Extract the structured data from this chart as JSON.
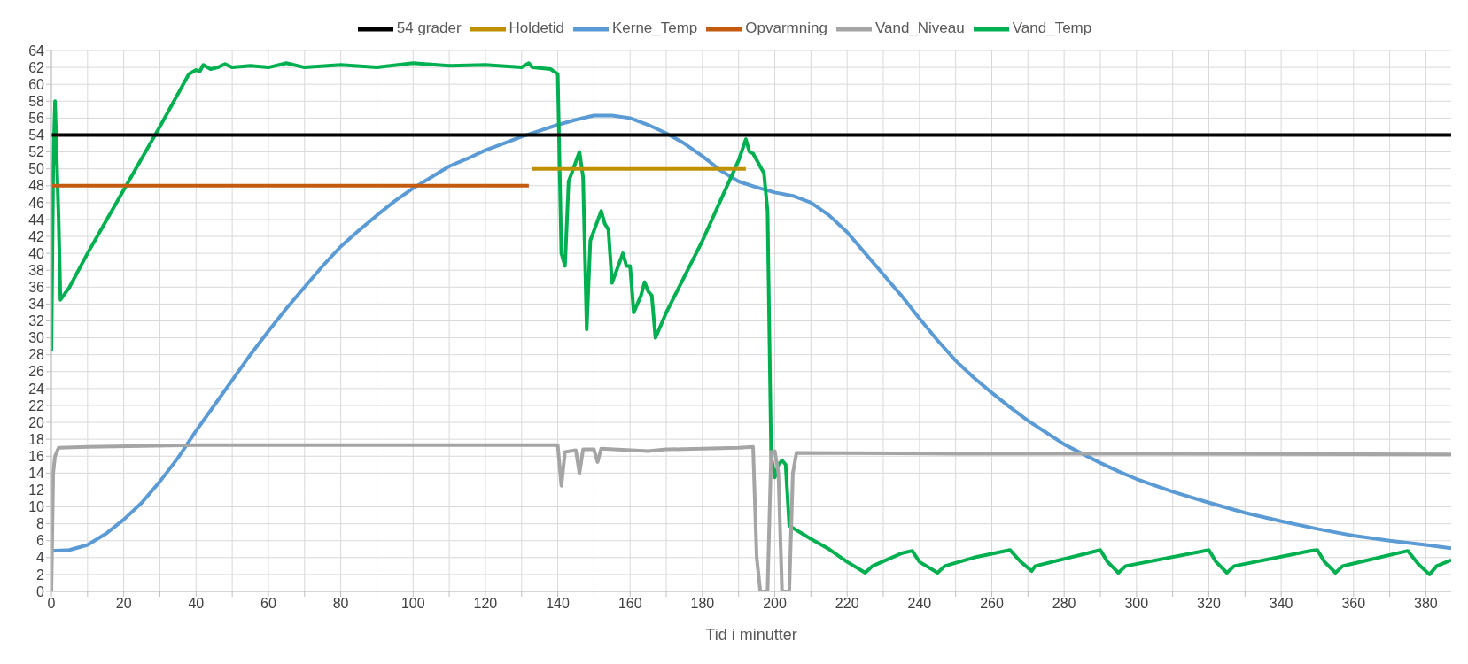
{
  "chart_data": {
    "type": "line",
    "xlabel": "Tid i minutter",
    "legend": "top",
    "grid": true,
    "marker": "none",
    "line_style": "solid",
    "xlim": [
      0,
      387
    ],
    "ylim": [
      0,
      64
    ],
    "xticks": [
      0,
      {
        "value": 10,
        "label": null
      },
      20,
      {
        "value": 30,
        "label": null
      },
      40,
      {
        "value": 50,
        "label": null
      },
      60,
      {
        "value": 70,
        "label": null
      },
      80,
      {
        "value": 90,
        "label": null
      },
      100,
      {
        "value": 110,
        "label": null
      },
      120,
      {
        "value": 130,
        "label": null
      },
      140,
      {
        "value": 150,
        "label": null
      },
      160,
      {
        "value": 170,
        "label": null
      },
      180,
      {
        "value": 190,
        "label": null
      },
      200,
      {
        "value": 210,
        "label": null
      },
      220,
      {
        "value": 230,
        "label": null
      },
      240,
      {
        "value": 250,
        "label": null
      },
      260,
      {
        "value": 270,
        "label": null
      },
      280,
      {
        "value": 290,
        "label": null
      },
      300,
      {
        "value": 310,
        "label": null
      },
      320,
      {
        "value": 330,
        "label": null
      },
      340,
      {
        "value": 350,
        "label": null
      },
      360,
      {
        "value": 370,
        "label": null
      },
      380
    ],
    "yticks": [
      0,
      2,
      4,
      6,
      8,
      10,
      12,
      14,
      16,
      18,
      20,
      22,
      24,
      26,
      28,
      30,
      32,
      34,
      36,
      38,
      40,
      42,
      44,
      46,
      48,
      50,
      52,
      54,
      56,
      58,
      60,
      62,
      64
    ],
    "series": [
      {
        "name": "Kerne_Temp",
        "color": "#5b9bd5",
        "x": [
          0,
          5,
          10,
          15,
          20,
          25,
          30,
          35,
          40,
          45,
          50,
          55,
          60,
          65,
          70,
          75,
          80,
          85,
          90,
          95,
          100,
          105,
          110,
          115,
          120,
          125,
          130,
          135,
          140,
          145,
          150,
          155,
          160,
          165,
          170,
          175,
          180,
          185,
          190,
          195,
          200,
          205,
          210,
          215,
          220,
          225,
          230,
          235,
          240,
          245,
          250,
          255,
          260,
          265,
          270,
          275,
          280,
          285,
          290,
          295,
          300,
          310,
          320,
          330,
          340,
          350,
          360,
          370,
          380,
          387
        ],
        "values": [
          4.8,
          4.9,
          5.5,
          6.8,
          8.5,
          10.5,
          13,
          15.8,
          19,
          22,
          25,
          28,
          30.8,
          33.5,
          36,
          38.5,
          40.8,
          42.7,
          44.5,
          46.2,
          47.7,
          49,
          50.3,
          51.2,
          52.2,
          53,
          53.8,
          54.5,
          55.2,
          55.8,
          56.3,
          56.3,
          56,
          55.2,
          54.2,
          53,
          51.5,
          49.8,
          48.5,
          47.8,
          47.2,
          46.8,
          46,
          44.5,
          42.5,
          40,
          37.5,
          35,
          32.3,
          29.7,
          27.3,
          25.3,
          23.5,
          21.8,
          20.2,
          18.8,
          17.4,
          16.3,
          15.2,
          14.2,
          13.3,
          11.8,
          10.5,
          9.3,
          8.3,
          7.4,
          6.6,
          6,
          5.5,
          5.1
        ]
      },
      {
        "name": "Vand_Temp",
        "color": "#00b050",
        "x": [
          0,
          0.5,
          1,
          2,
          2.5,
          5,
          10,
          20,
          30,
          38,
          40,
          41,
          42,
          44,
          46,
          48,
          50,
          55,
          60,
          65,
          70,
          80,
          90,
          100,
          110,
          120,
          130,
          132,
          133,
          138,
          140,
          141,
          142,
          143,
          146,
          147,
          148,
          149,
          152,
          153,
          154,
          155,
          158,
          159,
          160,
          161,
          163,
          164,
          165,
          166,
          167,
          170,
          180,
          190,
          192,
          193,
          194,
          197,
          198,
          199,
          200,
          201,
          202,
          203,
          204,
          205,
          210,
          215,
          220,
          225,
          227,
          235,
          238,
          240,
          245,
          247,
          255,
          265,
          268,
          271,
          272,
          290,
          292,
          295,
          297,
          320,
          322,
          325,
          327,
          348,
          350,
          352,
          355,
          357,
          375,
          378,
          381,
          383,
          387
        ],
        "values": [
          28.5,
          50,
          58,
          44,
          34.5,
          36,
          40,
          47.5,
          55,
          61.2,
          61.7,
          61.5,
          62.3,
          61.8,
          62,
          62.4,
          62,
          62.2,
          62,
          62.5,
          62,
          62.3,
          62,
          62.5,
          62.2,
          62.3,
          62,
          62.5,
          62,
          61.8,
          61.2,
          40,
          38.5,
          48.5,
          52,
          49,
          31,
          41.5,
          45,
          43.5,
          42.8,
          36.5,
          40,
          38.5,
          38.5,
          33,
          35,
          36.6,
          35.5,
          35,
          30,
          33,
          41.5,
          51,
          53.5,
          52,
          51.8,
          49.5,
          45,
          16,
          13.5,
          15,
          15.5,
          15,
          7.8,
          7.5,
          6.2,
          5,
          3.5,
          2.2,
          3,
          4.5,
          4.8,
          3.5,
          2.2,
          3,
          4,
          4.9,
          3.5,
          2.4,
          3,
          4.9,
          3.5,
          2.2,
          3,
          4.9,
          3.5,
          2.2,
          3,
          4.8,
          4.9,
          3.5,
          2.2,
          3,
          4.8,
          3.2,
          2,
          3,
          3.7
        ]
      },
      {
        "name": "Vand_Niveau",
        "color": "#a5a5a5",
        "x": [
          0,
          0.5,
          1,
          2,
          10,
          40,
          100,
          140,
          141,
          142,
          145,
          146,
          147,
          150,
          151,
          152,
          165,
          170,
          190,
          194,
          195,
          196,
          198,
          199,
          200,
          201,
          202,
          204,
          205,
          206,
          250,
          300,
          387
        ],
        "values": [
          0,
          14,
          16,
          17,
          17.1,
          17.3,
          17.3,
          17.3,
          12.5,
          16.5,
          16.7,
          14,
          16.8,
          16.8,
          15.3,
          16.9,
          16.6,
          16.8,
          17,
          17.1,
          4,
          0,
          0,
          16.5,
          16.6,
          14,
          0,
          0,
          14,
          16.4,
          16.3,
          16.3,
          16.2
        ]
      },
      {
        "name": "Opvarmning",
        "color": "#c55a11",
        "x": [
          0,
          132
        ],
        "values": [
          48,
          48
        ]
      },
      {
        "name": "Holdetid",
        "color": "#bf9000",
        "x": [
          133,
          192
        ],
        "values": [
          50,
          50
        ]
      },
      {
        "name": "54 grader",
        "color": "#000000",
        "x": [
          0,
          387
        ],
        "values": [
          54,
          54
        ]
      }
    ]
  }
}
